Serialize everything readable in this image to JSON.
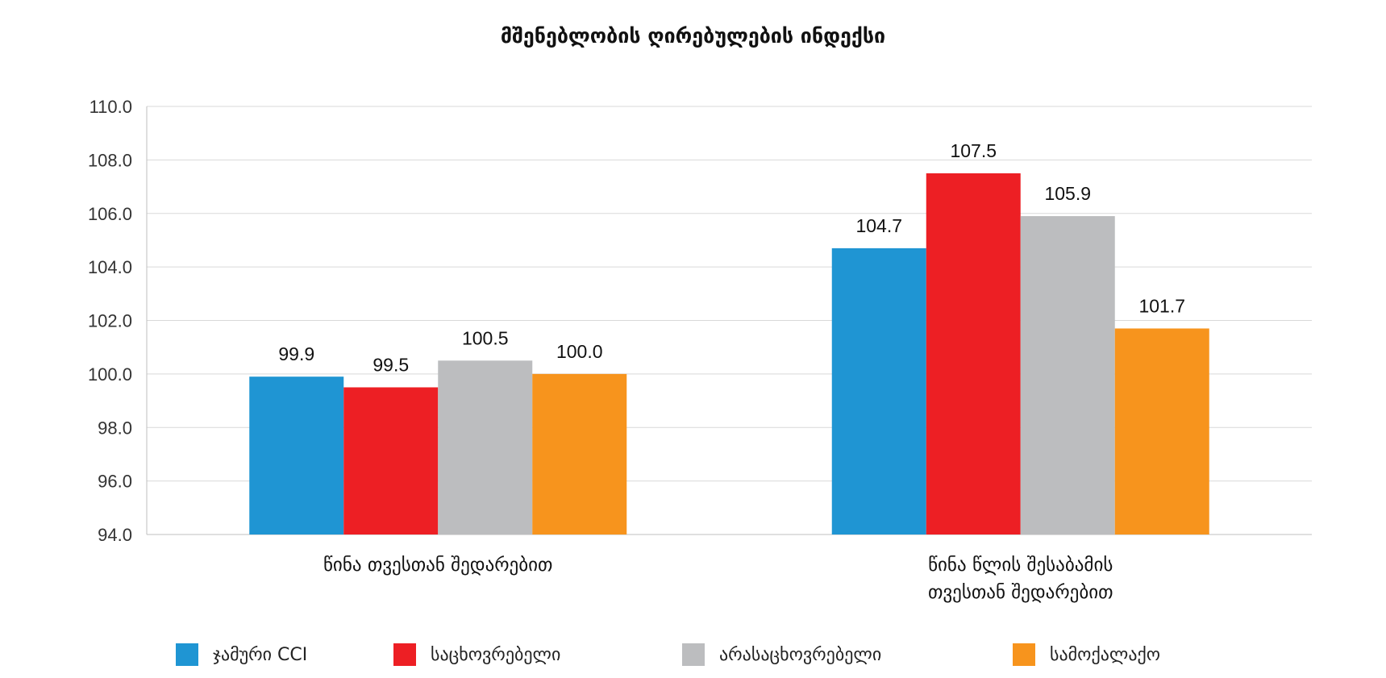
{
  "chart_data": {
    "type": "bar",
    "title": "მშენებლობის ღირებულების ინდექსი",
    "categories": [
      [
        "წინა თვესთან შედარებით"
      ],
      [
        "წინა წლის შესაბამის",
        "თვესთან შედარებით"
      ]
    ],
    "series": [
      {
        "name": "ჯამური CCI",
        "color": "#1f95d3",
        "values": [
          99.9,
          104.7
        ]
      },
      {
        "name": "საცხოვრებელი",
        "color": "#ed1f24",
        "values": [
          99.5,
          107.5
        ]
      },
      {
        "name": "არასაცხოვრებელი",
        "color": "#bcbdbf",
        "values": [
          100.5,
          105.9
        ]
      },
      {
        "name": "სამოქალაქო",
        "color": "#f7941d",
        "values": [
          100.0,
          101.7
        ]
      }
    ],
    "ylim": [
      94,
      110
    ],
    "yticks": [
      "94.0",
      "96.0",
      "98.0",
      "100.0",
      "102.0",
      "104.0",
      "106.0",
      "108.0",
      "110.0"
    ],
    "grid": true,
    "legend": "bottom",
    "xlabel": "",
    "ylabel": ""
  }
}
